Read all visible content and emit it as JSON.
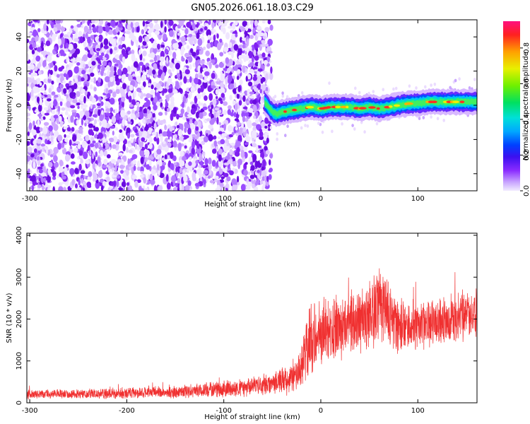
{
  "chart_data": [
    {
      "type": "heatmap",
      "title": "GN05.2026.061.18.03.C29",
      "xlabel": "Height of straight line (km)",
      "ylabel": "Frequency (Hz)",
      "xlim": [
        -303,
        161
      ],
      "ylim": [
        -50,
        50
      ],
      "xticks": [
        -300,
        -200,
        -100,
        0,
        100
      ],
      "yticks": [
        -40,
        -20,
        0,
        20,
        40
      ],
      "colorbar": {
        "label": "Normalized spectral amplitude",
        "range": [
          0,
          0.95
        ],
        "ticks": [
          0.0,
          0.2,
          0.4,
          0.6,
          0.8
        ]
      },
      "noise_region_x": [
        -303,
        -55
      ],
      "signal_ridge": {
        "x": [
          -58,
          -55,
          -50,
          -45,
          -40,
          -30,
          -20,
          -10,
          0,
          10,
          20,
          30,
          40,
          50,
          60,
          70,
          80,
          90,
          100,
          110,
          120,
          130,
          140,
          150,
          160
        ],
        "freq": [
          2,
          0,
          -4,
          -5,
          -4,
          -3,
          -2,
          -1,
          -2,
          -1,
          -1,
          -1,
          -2,
          -1,
          -2,
          -1,
          0,
          1,
          1,
          2,
          2,
          2,
          2,
          2,
          2
        ]
      }
    },
    {
      "type": "line",
      "xlabel": "Height of straight line (km)",
      "ylabel": "SNR (10 * v/v)",
      "xlim": [
        -303,
        161
      ],
      "ylim": [
        0,
        4050
      ],
      "xticks": [
        -300,
        -200,
        -100,
        0,
        100
      ],
      "yticks": [
        0,
        1000,
        2000,
        3000,
        4000
      ],
      "color": "#f03030",
      "envelope": {
        "x": [
          -303,
          -250,
          -200,
          -150,
          -100,
          -70,
          -50,
          -35,
          -25,
          -20,
          -15,
          -10,
          0,
          10,
          20,
          30,
          40,
          50,
          60,
          70,
          80,
          90,
          100,
          110,
          120,
          130,
          140,
          150,
          161
        ],
        "mean": [
          200,
          210,
          230,
          260,
          330,
          400,
          460,
          550,
          650,
          900,
          1300,
          1550,
          1700,
          1750,
          1850,
          1900,
          1950,
          2100,
          2450,
          2050,
          1850,
          1800,
          1850,
          1900,
          1950,
          2000,
          2050,
          2100,
          2150
        ],
        "amp": [
          130,
          130,
          150,
          170,
          220,
          260,
          320,
          400,
          450,
          700,
          850,
          1000,
          900,
          950,
          950,
          900,
          900,
          1000,
          1150,
          950,
          800,
          650,
          650,
          650,
          650,
          650,
          650,
          650,
          650
        ]
      }
    }
  ]
}
